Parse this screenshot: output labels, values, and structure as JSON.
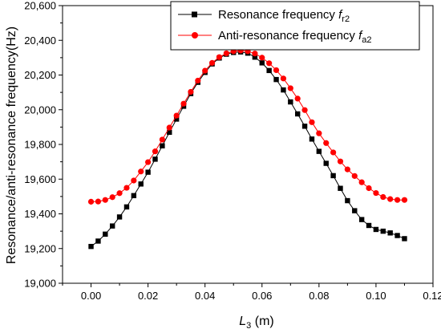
{
  "chart_data": {
    "type": "line",
    "xlabel": {
      "var": "L",
      "sub": "3",
      "unit": " (m)"
    },
    "ylabel": "Resonance/anti-resonance frequency(Hz)",
    "xlim": [
      -0.01,
      0.12
    ],
    "ylim": [
      19000,
      20600
    ],
    "x_ticks": [
      0.0,
      0.02,
      0.04,
      0.06,
      0.08,
      0.1,
      0.12
    ],
    "x_tick_labels": [
      "0.00",
      "0.02",
      "0.04",
      "0.06",
      "0.08",
      "0.10",
      "0.12"
    ],
    "y_ticks": [
      19000,
      19200,
      19400,
      19600,
      19800,
      20000,
      20200,
      20400,
      20600
    ],
    "y_tick_labels": [
      "19,000",
      "19,200",
      "19,400",
      "19,600",
      "19,800",
      "20,000",
      "20,200",
      "20,400",
      "20,600"
    ],
    "grid": false,
    "legend_position": "top-right",
    "series": [
      {
        "name": "Resonance frequency",
        "symbol": "f",
        "symbol_sub": "r2",
        "color": "#000000",
        "marker": "square",
        "points": [
          [
            0.0,
            19212
          ],
          [
            0.0025,
            19243
          ],
          [
            0.005,
            19283
          ],
          [
            0.0075,
            19330
          ],
          [
            0.01,
            19382
          ],
          [
            0.0125,
            19440
          ],
          [
            0.015,
            19505
          ],
          [
            0.0175,
            19572
          ],
          [
            0.02,
            19640
          ],
          [
            0.0225,
            19715
          ],
          [
            0.025,
            19792
          ],
          [
            0.0275,
            19870
          ],
          [
            0.03,
            19946
          ],
          [
            0.0325,
            20020
          ],
          [
            0.035,
            20093
          ],
          [
            0.0375,
            20158
          ],
          [
            0.04,
            20215
          ],
          [
            0.0425,
            20264
          ],
          [
            0.045,
            20298
          ],
          [
            0.0475,
            20320
          ],
          [
            0.05,
            20330
          ],
          [
            0.0525,
            20333
          ],
          [
            0.055,
            20326
          ],
          [
            0.0575,
            20303
          ],
          [
            0.06,
            20270
          ],
          [
            0.0625,
            20226
          ],
          [
            0.065,
            20174
          ],
          [
            0.0675,
            20114
          ],
          [
            0.07,
            20045
          ],
          [
            0.0725,
            19976
          ],
          [
            0.075,
            19905
          ],
          [
            0.0775,
            19831
          ],
          [
            0.08,
            19760
          ],
          [
            0.0825,
            19691
          ],
          [
            0.085,
            19620
          ],
          [
            0.0875,
            19547
          ],
          [
            0.09,
            19476
          ],
          [
            0.0925,
            19418
          ],
          [
            0.095,
            19367
          ],
          [
            0.0975,
            19333
          ],
          [
            0.1,
            19310
          ],
          [
            0.1025,
            19300
          ],
          [
            0.105,
            19290
          ],
          [
            0.1075,
            19275
          ],
          [
            0.11,
            19257
          ]
        ]
      },
      {
        "name": "Anti-resonance frequency",
        "symbol": "f",
        "symbol_sub": "a2",
        "color": "#ff0000",
        "marker": "circle",
        "points": [
          [
            0.0,
            19470
          ],
          [
            0.0025,
            19471
          ],
          [
            0.005,
            19480
          ],
          [
            0.0075,
            19496
          ],
          [
            0.01,
            19519
          ],
          [
            0.0125,
            19550
          ],
          [
            0.015,
            19592
          ],
          [
            0.0175,
            19644
          ],
          [
            0.02,
            19698
          ],
          [
            0.0225,
            19760
          ],
          [
            0.025,
            19828
          ],
          [
            0.0275,
            19897
          ],
          [
            0.03,
            19966
          ],
          [
            0.0325,
            20035
          ],
          [
            0.035,
            20103
          ],
          [
            0.0375,
            20168
          ],
          [
            0.04,
            20225
          ],
          [
            0.0425,
            20270
          ],
          [
            0.045,
            20303
          ],
          [
            0.0475,
            20325
          ],
          [
            0.05,
            20337
          ],
          [
            0.0525,
            20341
          ],
          [
            0.055,
            20337
          ],
          [
            0.0575,
            20324
          ],
          [
            0.06,
            20300
          ],
          [
            0.0625,
            20268
          ],
          [
            0.065,
            20228
          ],
          [
            0.0675,
            20180
          ],
          [
            0.07,
            20124
          ],
          [
            0.0725,
            20064
          ],
          [
            0.075,
            19998
          ],
          [
            0.0775,
            19928
          ],
          [
            0.08,
            19864
          ],
          [
            0.0825,
            19808
          ],
          [
            0.085,
            19754
          ],
          [
            0.0875,
            19702
          ],
          [
            0.09,
            19656
          ],
          [
            0.0925,
            19618
          ],
          [
            0.095,
            19582
          ],
          [
            0.0975,
            19548
          ],
          [
            0.1,
            19520
          ],
          [
            0.1025,
            19497
          ],
          [
            0.105,
            19485
          ],
          [
            0.1075,
            19480
          ],
          [
            0.11,
            19480
          ]
        ]
      }
    ]
  }
}
